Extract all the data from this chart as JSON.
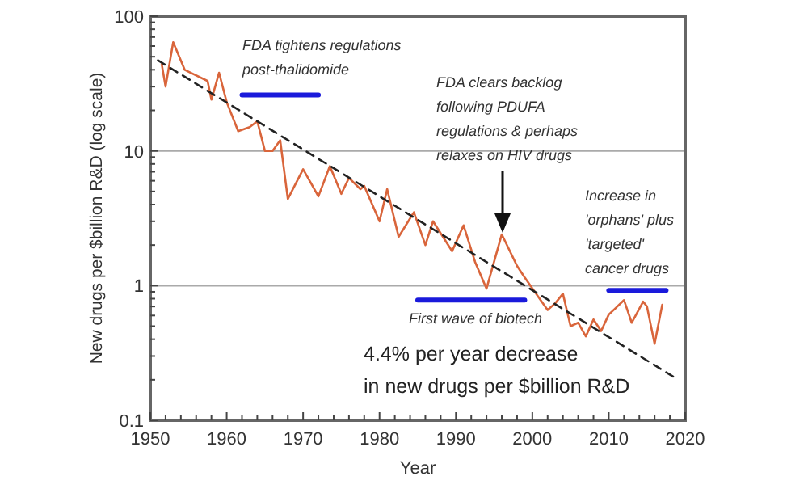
{
  "chart_data": {
    "type": "line",
    "xlabel": "Year",
    "ylabel": "New drugs per $billion R&D (log scale)",
    "log": "y",
    "grid": "y",
    "xlim": [
      1950,
      2020
    ],
    "ylim": [
      0.1,
      100
    ],
    "xticks": [
      1950,
      {
        "value": 1952,
        "label": null
      },
      {
        "value": 1954,
        "label": null
      },
      {
        "value": 1956,
        "label": null
      },
      {
        "value": 1958,
        "label": null
      },
      1960,
      {
        "value": 1962,
        "label": null
      },
      {
        "value": 1964,
        "label": null
      },
      {
        "value": 1966,
        "label": null
      },
      {
        "value": 1968,
        "label": null
      },
      1970,
      {
        "value": 1972,
        "label": null
      },
      {
        "value": 1974,
        "label": null
      },
      {
        "value": 1976,
        "label": null
      },
      {
        "value": 1978,
        "label": null
      },
      1980,
      {
        "value": 1982,
        "label": null
      },
      {
        "value": 1984,
        "label": null
      },
      {
        "value": 1986,
        "label": null
      },
      {
        "value": 1988,
        "label": null
      },
      1990,
      {
        "value": 1992,
        "label": null
      },
      {
        "value": 1994,
        "label": null
      },
      {
        "value": 1996,
        "label": null
      },
      {
        "value": 1998,
        "label": null
      },
      2000,
      {
        "value": 2002,
        "label": null
      },
      {
        "value": 2004,
        "label": null
      },
      {
        "value": 2006,
        "label": null
      },
      {
        "value": 2008,
        "label": null
      },
      2010,
      {
        "value": 2012,
        "label": null
      },
      {
        "value": 2014,
        "label": null
      },
      {
        "value": 2016,
        "label": null
      },
      {
        "value": 2018,
        "label": null
      },
      2020
    ],
    "yticks": [
      0.1,
      {
        "value": 0.2,
        "label": null
      },
      {
        "value": 0.3,
        "label": null
      },
      {
        "value": 0.4,
        "label": null
      },
      {
        "value": 0.5,
        "label": null
      },
      {
        "value": 0.6,
        "label": null
      },
      {
        "value": 0.7,
        "label": null
      },
      {
        "value": 0.8,
        "label": null
      },
      {
        "value": 0.9,
        "label": null
      },
      1,
      {
        "value": 2,
        "label": null
      },
      {
        "value": 3,
        "label": null
      },
      {
        "value": 4,
        "label": null
      },
      {
        "value": 5,
        "label": null
      },
      {
        "value": 6,
        "label": null
      },
      {
        "value": 7,
        "label": null
      },
      {
        "value": 8,
        "label": null
      },
      {
        "value": 9,
        "label": null
      },
      10,
      {
        "value": 20,
        "label": null
      },
      {
        "value": 30,
        "label": null
      },
      {
        "value": 40,
        "label": null
      },
      {
        "value": 50,
        "label": null
      },
      {
        "value": 60,
        "label": null
      },
      {
        "value": 70,
        "label": null
      },
      {
        "value": 80,
        "label": null
      },
      {
        "value": 90,
        "label": null
      },
      100
    ],
    "series": [
      {
        "color": "#d9653b",
        "line_style": "solid",
        "x": [
          1951.5,
          1952,
          1953,
          1954.5,
          1957.5,
          1958,
          1959,
          1960,
          1961.5,
          1963,
          1964,
          1965,
          1966,
          1967,
          1968,
          1970,
          1972,
          1973.5,
          1975,
          1976,
          1977.5,
          1978,
          1980,
          1981,
          1982.5,
          1984.5,
          1986,
          1987,
          1989.5,
          1991,
          1992.5,
          1994,
          1996,
          1998,
          1999,
          2000.5,
          2002,
          2003,
          2004,
          2005,
          2006,
          2007,
          2008,
          2009,
          2010,
          2012,
          2013,
          2014.5,
          2015,
          2016,
          2017
        ],
        "values": [
          44,
          30,
          64,
          40,
          33,
          24,
          38,
          23,
          14,
          15,
          16.6,
          10,
          10,
          12,
          4.4,
          7.3,
          4.6,
          7.7,
          4.8,
          6.3,
          5.2,
          5.5,
          3.0,
          5.2,
          2.3,
          3.5,
          2,
          3,
          1.8,
          2.8,
          1.5,
          0.95,
          2.4,
          1.4,
          1.15,
          0.87,
          0.66,
          0.74,
          0.87,
          0.5,
          0.53,
          0.42,
          0.56,
          0.46,
          0.61,
          0.78,
          0.53,
          0.76,
          0.7,
          0.37,
          0.72
        ]
      },
      {
        "color": "#222222",
        "line_style": "dashed",
        "x": [
          1951,
          2018.5
        ],
        "values": [
          47,
          0.21
        ]
      },
      {
        "color": "#1a1adb",
        "line_style": "solid",
        "x": [
          1962,
          1972
        ],
        "values": [
          26,
          26
        ]
      },
      {
        "color": "#1a1adb",
        "line_style": "solid",
        "x": [
          1985,
          1999
        ],
        "values": [
          0.78,
          0.78
        ]
      },
      {
        "color": "#1a1adb",
        "line_style": "solid",
        "x": [
          2010,
          2017.5
        ],
        "values": [
          0.92,
          0.92
        ]
      }
    ],
    "annotations": [
      "FDA tightens regulations\npost-thalidomide",
      "FDA clears backlog\nfollowing PDUFA\nregulations & perhaps\nrelaxes on HIV drugs",
      "Increase in\n'orphans' plus\n'targeted'\ncancer drugs",
      "First wave of biotech",
      "4.4% per year decrease\nin new drugs per $billion R&D"
    ]
  }
}
